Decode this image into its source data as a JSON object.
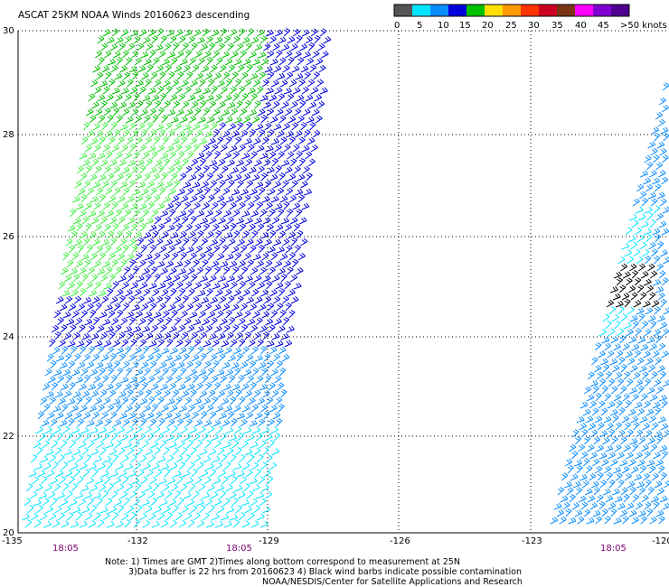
{
  "title": "ASCAT 25KM NOAA Winds 20160623 descending",
  "legend": {
    "units_label": ">50 knots",
    "ticks": [
      "0",
      "5",
      "10",
      "15",
      "20",
      "25",
      "30",
      "35",
      "40",
      "45"
    ],
    "colors": [
      "#555555",
      "#00e5ff",
      "#0a8dff",
      "#0000dd",
      "#00c000",
      "#ffe000",
      "#ff9900",
      "#ff3300",
      "#cc0022",
      "#7a3515",
      "#ff00ff",
      "#8000d0",
      "#500090"
    ]
  },
  "axes": {
    "lat_labels": [
      "30",
      "28",
      "26",
      "24",
      "22",
      "20"
    ],
    "lon_labels": [
      "-135",
      "-132",
      "-129",
      "-126",
      "-123",
      "-120"
    ],
    "lat_range": [
      20,
      30
    ],
    "lon_range": [
      -135,
      -120
    ]
  },
  "time_labels": [
    "18:05",
    "18:05",
    "18:05"
  ],
  "notes": [
    "Note: 1) Times are GMT 2)Times along bottom correspond to measurement at 25N",
    "3)Data buffer is 22 hrs from 20160623 4) Black wind barbs indicate possible contamination",
    "NOAA/NESDIS/Center for Satellite Applications and Research"
  ],
  "barb_colors": {
    "calm": "#00e5ff",
    "light": "#0a8dff",
    "moderate": "#0000dd",
    "fresh": "#00c000",
    "fresh_light": "#40ee40",
    "contaminated": "#000000"
  }
}
